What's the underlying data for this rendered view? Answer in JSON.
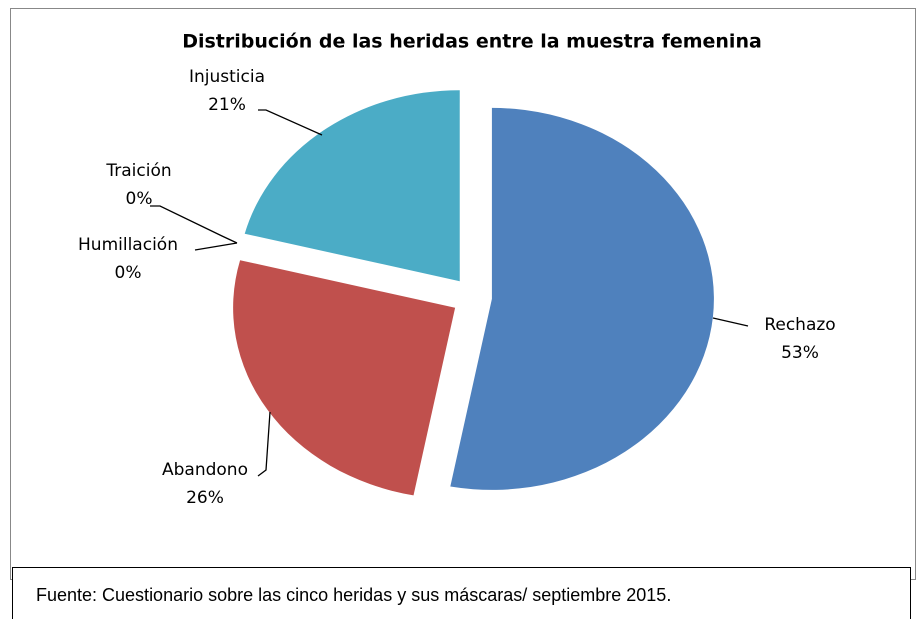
{
  "chart_data": {
    "type": "pie",
    "title": "Distribución de las heridas entre la muestra femenina",
    "categories": [
      "Rechazo",
      "Abandono",
      "Humillación",
      "Traición",
      "Injusticia"
    ],
    "values": [
      53,
      26,
      0,
      0,
      21
    ],
    "value_labels": [
      "53%",
      "26%",
      "0%",
      "0%",
      "21%"
    ],
    "colors": [
      "#4f81bd",
      "#c0504d",
      "#9bbb59",
      "#8064a2",
      "#4bacc6"
    ],
    "source": "Fuente: Cuestionario sobre las cinco heridas y sus máscaras/ septiembre 2015."
  }
}
